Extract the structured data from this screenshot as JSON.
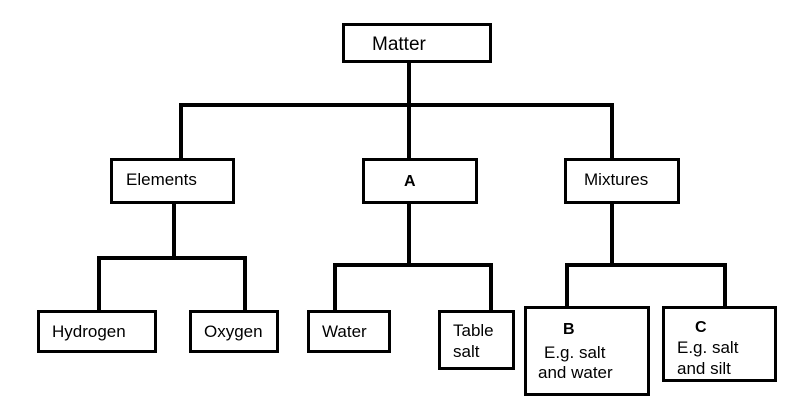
{
  "diagram": {
    "root": {
      "label": "Matter"
    },
    "level1": {
      "elements": {
        "label": "Elements"
      },
      "compounds": {
        "label": "A"
      },
      "mixtures": {
        "label": "Mixtures"
      }
    },
    "level2": {
      "hydrogen": {
        "label": "Hydrogen"
      },
      "oxygen": {
        "label": "Oxygen"
      },
      "water": {
        "label": "Water"
      },
      "table_salt": {
        "line1": "Table",
        "line2": "salt"
      },
      "mixture_b": {
        "letter": "B",
        "line1": "E.g. salt",
        "line2": "and water"
      },
      "mixture_c": {
        "letter": "C",
        "line1": "E.g. salt",
        "line2": "and silt"
      }
    },
    "colors": {
      "line": "#000000",
      "background": "#ffffff"
    }
  }
}
